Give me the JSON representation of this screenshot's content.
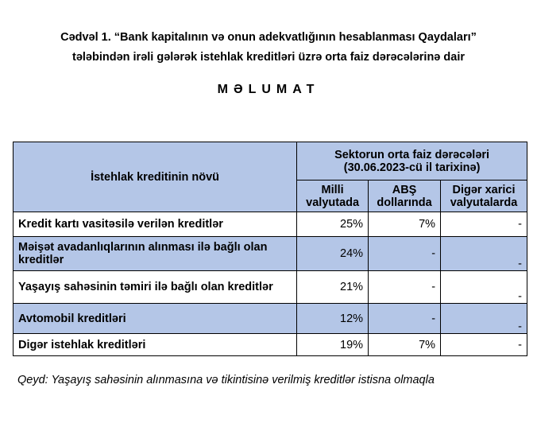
{
  "title_line1": "Cədvəl 1. “Bank kapitalının və onun adekvatlığının hesablanması Qaydaları”",
  "title_line2": "tələbindən irəli gələrək istehlak kreditləri üzrə orta faiz dərəcələrinə dair",
  "heading": "MƏLUMAT",
  "table": {
    "header_type": "İstehlak kreditinin növü",
    "header_group": "Sektorun orta faiz dərəcələri (30.06.2023-cü il tarixinə)",
    "columns": [
      "Milli valyutada",
      "ABŞ dollarında",
      "Digər xarici valyutalarda"
    ],
    "fill_color": "#b4c6e7",
    "rows": [
      {
        "type": "Kredit kartı vasitəsilə verilən kreditlər",
        "values": [
          "25%",
          "7%",
          "-"
        ]
      },
      {
        "type": "Məişət avadanlıqlarının alınması ilə bağlı olan kreditlər",
        "values": [
          "24%",
          "-",
          "-"
        ]
      },
      {
        "type": "Yaşayış sahəsinin təmiri ilə bağlı olan kreditlər",
        "values": [
          "21%",
          "-",
          "-"
        ]
      },
      {
        "type": "Avtomobil kreditləri",
        "values": [
          "12%",
          "-",
          "-"
        ]
      },
      {
        "type": "Digər istehlak kreditləri",
        "values": [
          "19%",
          "7%",
          "-"
        ]
      }
    ]
  },
  "note": "Qeyd: Yaşayış sahəsinin alınmasına və tikintisinə verilmiş kreditlər istisna olmaqla"
}
